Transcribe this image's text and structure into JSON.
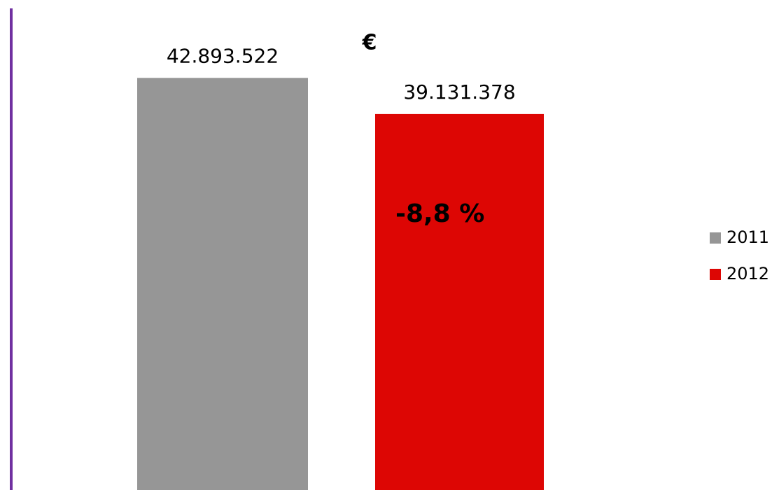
{
  "chart_data": {
    "type": "bar",
    "title": "€",
    "annotation": "-8,8 %",
    "categories": [
      null
    ],
    "series": [
      {
        "name": "2011",
        "color": "#969696",
        "values": [
          42893522
        ],
        "value_labels": [
          "42.893.522"
        ]
      },
      {
        "name": "2012",
        "color": "#dd0604",
        "values": [
          39131378
        ],
        "value_labels": [
          "39.131.378"
        ]
      }
    ],
    "ylim": [
      0,
      51000000
    ],
    "axis_color": "#7030a0",
    "legend": "right"
  }
}
